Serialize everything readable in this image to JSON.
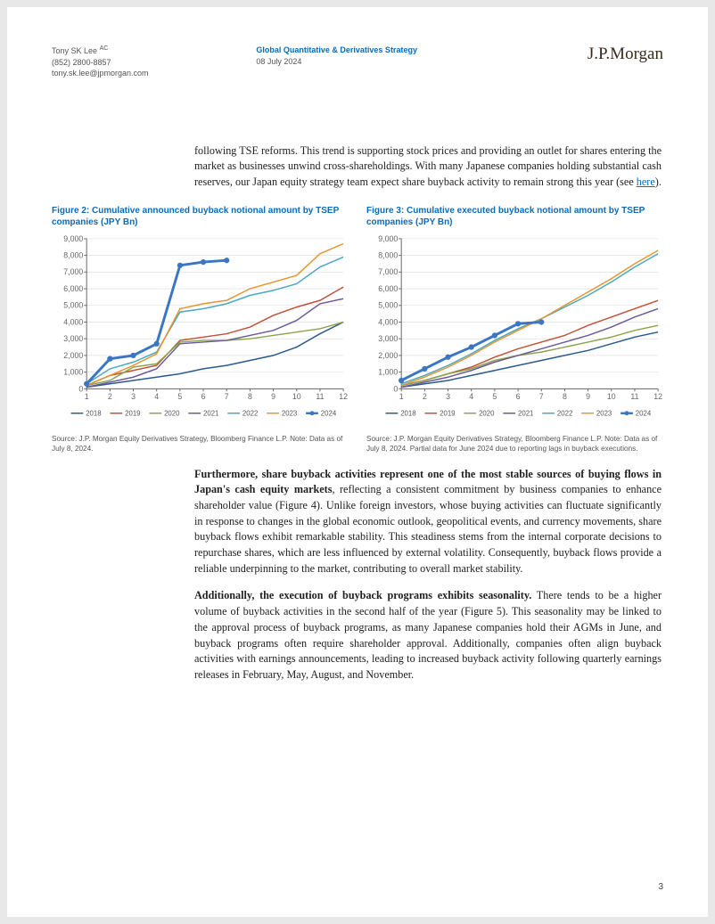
{
  "header": {
    "author_name": "Tony SK Lee",
    "author_ac": "AC",
    "author_phone": "(852) 2800-8857",
    "author_email": "tony.sk.lee@jpmorgan.com",
    "dept": "Global Quantitative & Derivatives Strategy",
    "date": "08 July 2024",
    "logo": "J.P.Morgan"
  },
  "page_number": "3",
  "intro_text": "following TSE reforms. This trend is supporting stock prices and providing an outlet for shares entering the market as businesses unwind cross-shareholdings. With many Japanese companies holding substantial cash reserves, our Japan equity strategy team expect share buyback activity to remain strong this year (see ",
  "intro_link": "here",
  "intro_close": ").",
  "para2_bold": "Furthermore, share buyback activities represent one of the most stable sources of buying flows in Japan's cash equity markets",
  "para2_rest": ", reflecting a consistent commitment by business companies to enhance shareholder value (Figure 4). Unlike foreign investors, whose buying activities can fluctuate significantly in response to changes in the global economic outlook, geopolitical events, and currency movements, share buyback flows exhibit remarkable stability. This steadiness stems from the internal corporate decisions to repurchase shares, which are less influenced by external volatility. Consequently, buyback flows provide a reliable underpinning to the market, contributing to overall market stability.",
  "para3_bold": "Additionally, the execution of buyback programs exhibits seasonality.",
  "para3_rest": " There tends to be a higher volume of buyback activities in the second half of the year (Figure 5). This seasonality may be linked to the approval process of buyback programs, as many Japanese companies hold their AGMs in June, and buyback programs often require shareholder approval. Additionally, companies often align buyback activities with earnings announcements, leading to increased buyback activity following quarterly earnings releases in February, May, August, and November.",
  "chart2": {
    "title": "Figure 2: Cumulative announced buyback notional amount by TSEP companies (JPY Bn)",
    "source": "Source: J.P. Morgan Equity Derivatives Strategy, Bloomberg Finance L.P. Note: Data as of July 8, 2024.",
    "type": "line",
    "ylim": [
      0,
      9000
    ],
    "ytick_step": 1000,
    "y_ticks": [
      "0",
      "1,000",
      "2,000",
      "3,000",
      "4,000",
      "5,000",
      "6,000",
      "7,000",
      "8,000",
      "9,000"
    ],
    "x_ticks": [
      "1",
      "2",
      "3",
      "4",
      "5",
      "6",
      "7",
      "8",
      "9",
      "10",
      "11",
      "12"
    ],
    "categories": [
      1,
      2,
      3,
      4,
      5,
      6,
      7,
      8,
      9,
      10,
      11,
      12
    ],
    "series": [
      {
        "name": "2018",
        "color": "#2b5a8c",
        "dash": "0",
        "width": 1.5,
        "marker": false,
        "data": [
          100,
          300,
          500,
          700,
          900,
          1200,
          1400,
          1700,
          2000,
          2500,
          3300,
          4000
        ]
      },
      {
        "name": "2019",
        "color": "#c45038",
        "dash": "0",
        "width": 1.5,
        "marker": false,
        "data": [
          200,
          800,
          1100,
          1400,
          2900,
          3100,
          3300,
          3700,
          4400,
          4900,
          5300,
          6100
        ]
      },
      {
        "name": "2020",
        "color": "#8aa54a",
        "dash": "0",
        "width": 1.5,
        "marker": false,
        "data": [
          200,
          500,
          1300,
          1500,
          2800,
          2900,
          2900,
          3000,
          3200,
          3400,
          3600,
          4000
        ]
      },
      {
        "name": "2021",
        "color": "#6b5a99",
        "dash": "0",
        "width": 1.5,
        "marker": false,
        "data": [
          100,
          400,
          700,
          1200,
          2700,
          2800,
          2900,
          3200,
          3500,
          4100,
          5100,
          5400
        ]
      },
      {
        "name": "2022",
        "color": "#4aa8c4",
        "dash": "0",
        "width": 1.5,
        "marker": false,
        "data": [
          300,
          1200,
          1600,
          2200,
          4600,
          4800,
          5100,
          5600,
          5900,
          6300,
          7300,
          7900
        ]
      },
      {
        "name": "2023",
        "color": "#e8942e",
        "dash": "0",
        "width": 1.5,
        "marker": false,
        "data": [
          200,
          800,
          1400,
          2100,
          4800,
          5100,
          5300,
          6000,
          6400,
          6800,
          8100,
          8700
        ]
      },
      {
        "name": "2024",
        "color": "#3b76c4",
        "dash": "0",
        "width": 3,
        "marker": true,
        "data": [
          300,
          1800,
          2000,
          2700,
          7400,
          7600,
          7700
        ]
      }
    ],
    "background_color": "#ffffff",
    "grid_color": "#d9d9d9",
    "axis_color": "#666",
    "tick_fontsize": 9,
    "title_fontsize": 10
  },
  "chart3": {
    "title": "Figure 3: Cumulative executed buyback notional amount by TSEP companies (JPY Bn)",
    "source": "Source: J.P. Morgan Equity Derivatives Strategy, Bloomberg Finance L.P. Note: Data as of July 8, 2024. Partial data for June 2024 due to reporting lags in buyback executions.",
    "type": "line",
    "ylim": [
      0,
      9000
    ],
    "ytick_step": 1000,
    "y_ticks": [
      "0",
      "1,000",
      "2,000",
      "3,000",
      "4,000",
      "5,000",
      "6,000",
      "7,000",
      "8,000",
      "9,000"
    ],
    "x_ticks": [
      "1",
      "2",
      "3",
      "4",
      "5",
      "6",
      "7",
      "8",
      "9",
      "10",
      "11",
      "12"
    ],
    "categories": [
      1,
      2,
      3,
      4,
      5,
      6,
      7,
      8,
      9,
      10,
      11,
      12
    ],
    "series": [
      {
        "name": "2018",
        "color": "#2b5a8c",
        "dash": "0",
        "width": 1.5,
        "marker": false,
        "data": [
          100,
          300,
          500,
          800,
          1100,
          1400,
          1700,
          2000,
          2300,
          2700,
          3100,
          3400
        ]
      },
      {
        "name": "2019",
        "color": "#c45038",
        "dash": "0",
        "width": 1.5,
        "marker": false,
        "data": [
          200,
          500,
          900,
          1300,
          1900,
          2400,
          2800,
          3200,
          3800,
          4300,
          4800,
          5300
        ]
      },
      {
        "name": "2020",
        "color": "#8aa54a",
        "dash": "0",
        "width": 1.5,
        "marker": false,
        "data": [
          200,
          500,
          900,
          1200,
          1700,
          2000,
          2200,
          2500,
          2800,
          3100,
          3500,
          3800
        ]
      },
      {
        "name": "2021",
        "color": "#6b5a99",
        "dash": "0",
        "width": 1.5,
        "marker": false,
        "data": [
          100,
          400,
          700,
          1100,
          1600,
          2000,
          2400,
          2800,
          3200,
          3700,
          4300,
          4800
        ]
      },
      {
        "name": "2022",
        "color": "#4aa8c4",
        "dash": "0",
        "width": 1.5,
        "marker": false,
        "data": [
          300,
          800,
          1400,
          2100,
          2900,
          3600,
          4200,
          4900,
          5600,
          6400,
          7300,
          8100
        ]
      },
      {
        "name": "2023",
        "color": "#e8942e",
        "dash": "0",
        "width": 1.5,
        "marker": false,
        "data": [
          200,
          700,
          1300,
          2000,
          2800,
          3500,
          4200,
          5000,
          5800,
          6600,
          7500,
          8300
        ]
      },
      {
        "name": "2024",
        "color": "#3b76c4",
        "dash": "0",
        "width": 3,
        "marker": true,
        "data": [
          500,
          1200,
          1900,
          2500,
          3200,
          3900,
          4000
        ]
      }
    ],
    "background_color": "#ffffff",
    "grid_color": "#d9d9d9",
    "axis_color": "#666",
    "tick_fontsize": 9,
    "title_fontsize": 10
  }
}
